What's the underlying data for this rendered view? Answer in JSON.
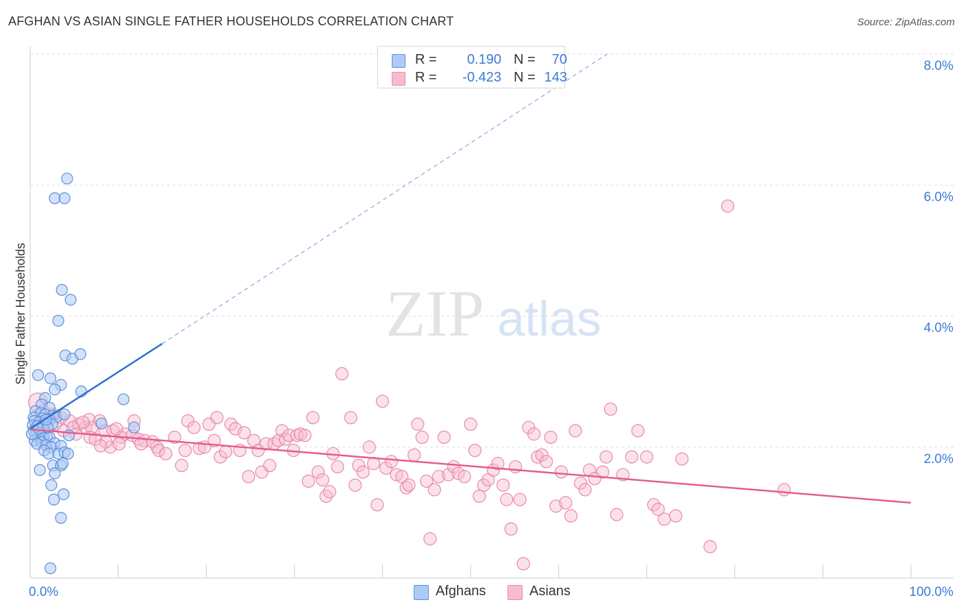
{
  "title": "AFGHAN VS ASIAN SINGLE FATHER HOUSEHOLDS CORRELATION CHART",
  "source": "Source: ZipAtlas.com",
  "colors": {
    "afghans_fill": "#aecbf5",
    "afghans_stroke": "#5b8fd6",
    "afghans_line": "#2f6fcc",
    "asians_fill": "#f7bcd0",
    "asians_stroke": "#e889aa",
    "asians_line": "#e45d8e",
    "value_text": "#3a7bd5",
    "grid": "#dedede"
  },
  "legend": {
    "rows": [
      {
        "r_label": "R =",
        "r_value": "0.190",
        "n_label": "N =",
        "n_value": "70"
      },
      {
        "r_label": "R =",
        "r_value": "-0.423",
        "n_label": "N =",
        "n_value": "143"
      }
    ],
    "series": [
      "Afghans",
      "Asians"
    ]
  },
  "chart_data": {
    "type": "scatter",
    "title": "AFGHAN VS ASIAN SINGLE FATHER HOUSEHOLDS CORRELATION CHART",
    "ylabel": "Single Father Households",
    "xlabel": "",
    "xlim": [
      0,
      100
    ],
    "ylim": [
      0,
      8.0
    ],
    "x_tick_labels": [
      "0.0%",
      "100.0%"
    ],
    "y_ticks": [
      2.0,
      4.0,
      6.0,
      8.0
    ],
    "y_tick_labels": [
      "2.0%",
      "4.0%",
      "6.0%",
      "8.0%"
    ],
    "watermark": {
      "zip": "ZIP",
      "atlas": "atlas"
    },
    "series": [
      {
        "name": "Afghans",
        "r": 0.19,
        "n": 70,
        "trend": {
          "x0": 0.0,
          "y0": 2.28,
          "x1": 15.0,
          "y1": 3.58,
          "dash_to_x": 65.5,
          "dash_to_y": 8.0
        },
        "points": [
          [
            4.2,
            6.1
          ],
          [
            2.8,
            5.8
          ],
          [
            3.9,
            5.8
          ],
          [
            3.6,
            4.4
          ],
          [
            4.6,
            4.25
          ],
          [
            3.2,
            3.93
          ],
          [
            4.0,
            3.4
          ],
          [
            4.8,
            3.35
          ],
          [
            5.7,
            3.42
          ],
          [
            0.9,
            3.1
          ],
          [
            2.3,
            3.05
          ],
          [
            3.5,
            2.95
          ],
          [
            2.8,
            2.88
          ],
          [
            5.8,
            2.85
          ],
          [
            1.7,
            2.75
          ],
          [
            10.6,
            2.73
          ],
          [
            1.3,
            2.65
          ],
          [
            2.2,
            2.6
          ],
          [
            0.6,
            2.55
          ],
          [
            1.2,
            2.52
          ],
          [
            1.7,
            2.5
          ],
          [
            2.6,
            2.48
          ],
          [
            3.0,
            2.46
          ],
          [
            3.9,
            2.5
          ],
          [
            0.4,
            2.45
          ],
          [
            1.4,
            2.44
          ],
          [
            2.2,
            2.42
          ],
          [
            0.5,
            2.4
          ],
          [
            1.0,
            2.38
          ],
          [
            1.6,
            2.36
          ],
          [
            2.5,
            2.35
          ],
          [
            8.1,
            2.36
          ],
          [
            0.3,
            2.33
          ],
          [
            0.8,
            2.32
          ],
          [
            1.5,
            2.3
          ],
          [
            11.8,
            2.3
          ],
          [
            0.4,
            2.25
          ],
          [
            1.2,
            2.22
          ],
          [
            0.6,
            2.18
          ],
          [
            1.9,
            2.16
          ],
          [
            0.9,
            2.15
          ],
          [
            1.5,
            2.14
          ],
          [
            2.2,
            2.15
          ],
          [
            4.4,
            2.18
          ],
          [
            0.5,
            2.1
          ],
          [
            1.3,
            2.08
          ],
          [
            2.8,
            2.06
          ],
          [
            0.8,
            2.05
          ],
          [
            1.8,
            2.03
          ],
          [
            2.4,
            2.0
          ],
          [
            3.5,
            2.02
          ],
          [
            1.6,
            1.95
          ],
          [
            2.1,
            1.9
          ],
          [
            3.2,
            1.9
          ],
          [
            3.9,
            1.92
          ],
          [
            4.3,
            1.9
          ],
          [
            1.1,
            1.65
          ],
          [
            2.6,
            1.72
          ],
          [
            3.5,
            1.72
          ],
          [
            3.7,
            1.75
          ],
          [
            2.8,
            1.6
          ],
          [
            2.4,
            1.42
          ],
          [
            3.8,
            1.28
          ],
          [
            2.7,
            1.2
          ],
          [
            3.5,
            0.92
          ],
          [
            2.3,
            0.15
          ],
          [
            0.2,
            2.2
          ],
          [
            1.0,
            2.28
          ],
          [
            2.0,
            2.3
          ],
          [
            1.8,
            2.42
          ]
        ]
      },
      {
        "name": "Asians",
        "r": -0.423,
        "n": 143,
        "trend": {
          "x0": 0.0,
          "y0": 2.27,
          "x1": 100.0,
          "y1": 1.15
        },
        "points": [
          [
            0.9,
            2.68
          ],
          [
            1.5,
            2.55
          ],
          [
            2.6,
            2.5
          ],
          [
            3.5,
            2.45
          ],
          [
            1.9,
            2.42
          ],
          [
            4.5,
            2.4
          ],
          [
            6.7,
            2.42
          ],
          [
            7.9,
            2.4
          ],
          [
            11.8,
            2.4
          ],
          [
            5.5,
            2.35
          ],
          [
            6.3,
            2.3
          ],
          [
            7.0,
            2.3
          ],
          [
            8.5,
            2.25
          ],
          [
            9.4,
            2.25
          ],
          [
            10.8,
            2.2
          ],
          [
            11.6,
            2.18
          ],
          [
            12.3,
            2.12
          ],
          [
            13.0,
            2.1
          ],
          [
            13.9,
            2.08
          ],
          [
            6.8,
            2.15
          ],
          [
            10.3,
            2.15
          ],
          [
            9.1,
            2.0
          ],
          [
            8.6,
            2.08
          ],
          [
            14.4,
            2.0
          ],
          [
            14.6,
            1.95
          ],
          [
            15.4,
            1.9
          ],
          [
            12.6,
            2.05
          ],
          [
            16.4,
            2.15
          ],
          [
            17.2,
            1.72
          ],
          [
            17.6,
            1.95
          ],
          [
            17.9,
            2.4
          ],
          [
            18.6,
            2.3
          ],
          [
            19.2,
            1.98
          ],
          [
            19.8,
            2.0
          ],
          [
            20.3,
            2.35
          ],
          [
            20.9,
            2.1
          ],
          [
            21.2,
            2.45
          ],
          [
            21.6,
            1.85
          ],
          [
            22.2,
            1.93
          ],
          [
            22.8,
            2.35
          ],
          [
            23.3,
            2.28
          ],
          [
            23.8,
            1.95
          ],
          [
            24.3,
            2.22
          ],
          [
            24.8,
            1.55
          ],
          [
            25.4,
            2.1
          ],
          [
            25.9,
            1.95
          ],
          [
            26.3,
            1.62
          ],
          [
            26.8,
            2.05
          ],
          [
            27.2,
            1.72
          ],
          [
            27.7,
            2.05
          ],
          [
            28.2,
            2.1
          ],
          [
            28.6,
            2.25
          ],
          [
            29.0,
            2.12
          ],
          [
            29.4,
            2.18
          ],
          [
            29.9,
            1.95
          ],
          [
            30.3,
            2.18
          ],
          [
            30.7,
            2.2
          ],
          [
            31.2,
            2.18
          ],
          [
            31.6,
            1.48
          ],
          [
            32.1,
            2.45
          ],
          [
            32.7,
            1.62
          ],
          [
            33.2,
            1.5
          ],
          [
            33.6,
            1.25
          ],
          [
            34.0,
            1.32
          ],
          [
            34.4,
            1.9
          ],
          [
            34.9,
            1.7
          ],
          [
            35.4,
            3.12
          ],
          [
            36.4,
            2.45
          ],
          [
            36.9,
            1.42
          ],
          [
            37.3,
            1.72
          ],
          [
            37.8,
            1.62
          ],
          [
            38.5,
            2.0
          ],
          [
            39.0,
            1.75
          ],
          [
            39.4,
            1.12
          ],
          [
            40.0,
            2.7
          ],
          [
            40.4,
            1.68
          ],
          [
            41.0,
            1.78
          ],
          [
            41.6,
            1.58
          ],
          [
            42.2,
            1.55
          ],
          [
            42.7,
            1.38
          ],
          [
            43.0,
            1.42
          ],
          [
            43.6,
            1.88
          ],
          [
            44.0,
            2.35
          ],
          [
            44.5,
            2.15
          ],
          [
            45.0,
            1.48
          ],
          [
            45.4,
            0.6
          ],
          [
            45.9,
            1.35
          ],
          [
            46.4,
            1.55
          ],
          [
            47.0,
            2.15
          ],
          [
            47.5,
            1.58
          ],
          [
            48.1,
            1.7
          ],
          [
            48.6,
            1.6
          ],
          [
            49.3,
            1.55
          ],
          [
            50.0,
            2.35
          ],
          [
            50.5,
            1.95
          ],
          [
            51.0,
            1.25
          ],
          [
            51.5,
            1.42
          ],
          [
            52.0,
            1.5
          ],
          [
            52.6,
            1.65
          ],
          [
            53.1,
            1.75
          ],
          [
            53.7,
            1.42
          ],
          [
            54.1,
            1.2
          ],
          [
            54.6,
            0.75
          ],
          [
            55.1,
            1.7
          ],
          [
            55.6,
            1.2
          ],
          [
            56.0,
            0.22
          ],
          [
            56.6,
            2.3
          ],
          [
            57.2,
            2.2
          ],
          [
            57.6,
            1.85
          ],
          [
            58.1,
            1.88
          ],
          [
            58.6,
            1.78
          ],
          [
            59.1,
            2.15
          ],
          [
            59.7,
            1.1
          ],
          [
            60.3,
            1.62
          ],
          [
            60.8,
            1.15
          ],
          [
            61.4,
            0.95
          ],
          [
            61.9,
            2.25
          ],
          [
            62.5,
            1.45
          ],
          [
            63.0,
            1.35
          ],
          [
            63.5,
            1.65
          ],
          [
            64.1,
            1.52
          ],
          [
            65.0,
            1.62
          ],
          [
            65.4,
            1.85
          ],
          [
            65.9,
            2.58
          ],
          [
            66.6,
            0.97
          ],
          [
            67.3,
            1.58
          ],
          [
            68.3,
            1.85
          ],
          [
            69.0,
            2.25
          ],
          [
            70.0,
            1.85
          ],
          [
            70.8,
            1.12
          ],
          [
            71.3,
            1.05
          ],
          [
            72.0,
            0.9
          ],
          [
            73.3,
            0.95
          ],
          [
            74.0,
            1.82
          ],
          [
            77.2,
            0.48
          ],
          [
            79.2,
            5.68
          ],
          [
            85.6,
            1.35
          ],
          [
            1.6,
            2.25
          ],
          [
            2.9,
            2.35
          ],
          [
            3.8,
            2.25
          ],
          [
            4.9,
            2.3
          ],
          [
            5.2,
            2.2
          ],
          [
            6.0,
            2.38
          ],
          [
            7.4,
            2.12
          ],
          [
            8.0,
            2.02
          ],
          [
            9.8,
            2.28
          ],
          [
            10.1,
            2.05
          ]
        ]
      }
    ]
  }
}
